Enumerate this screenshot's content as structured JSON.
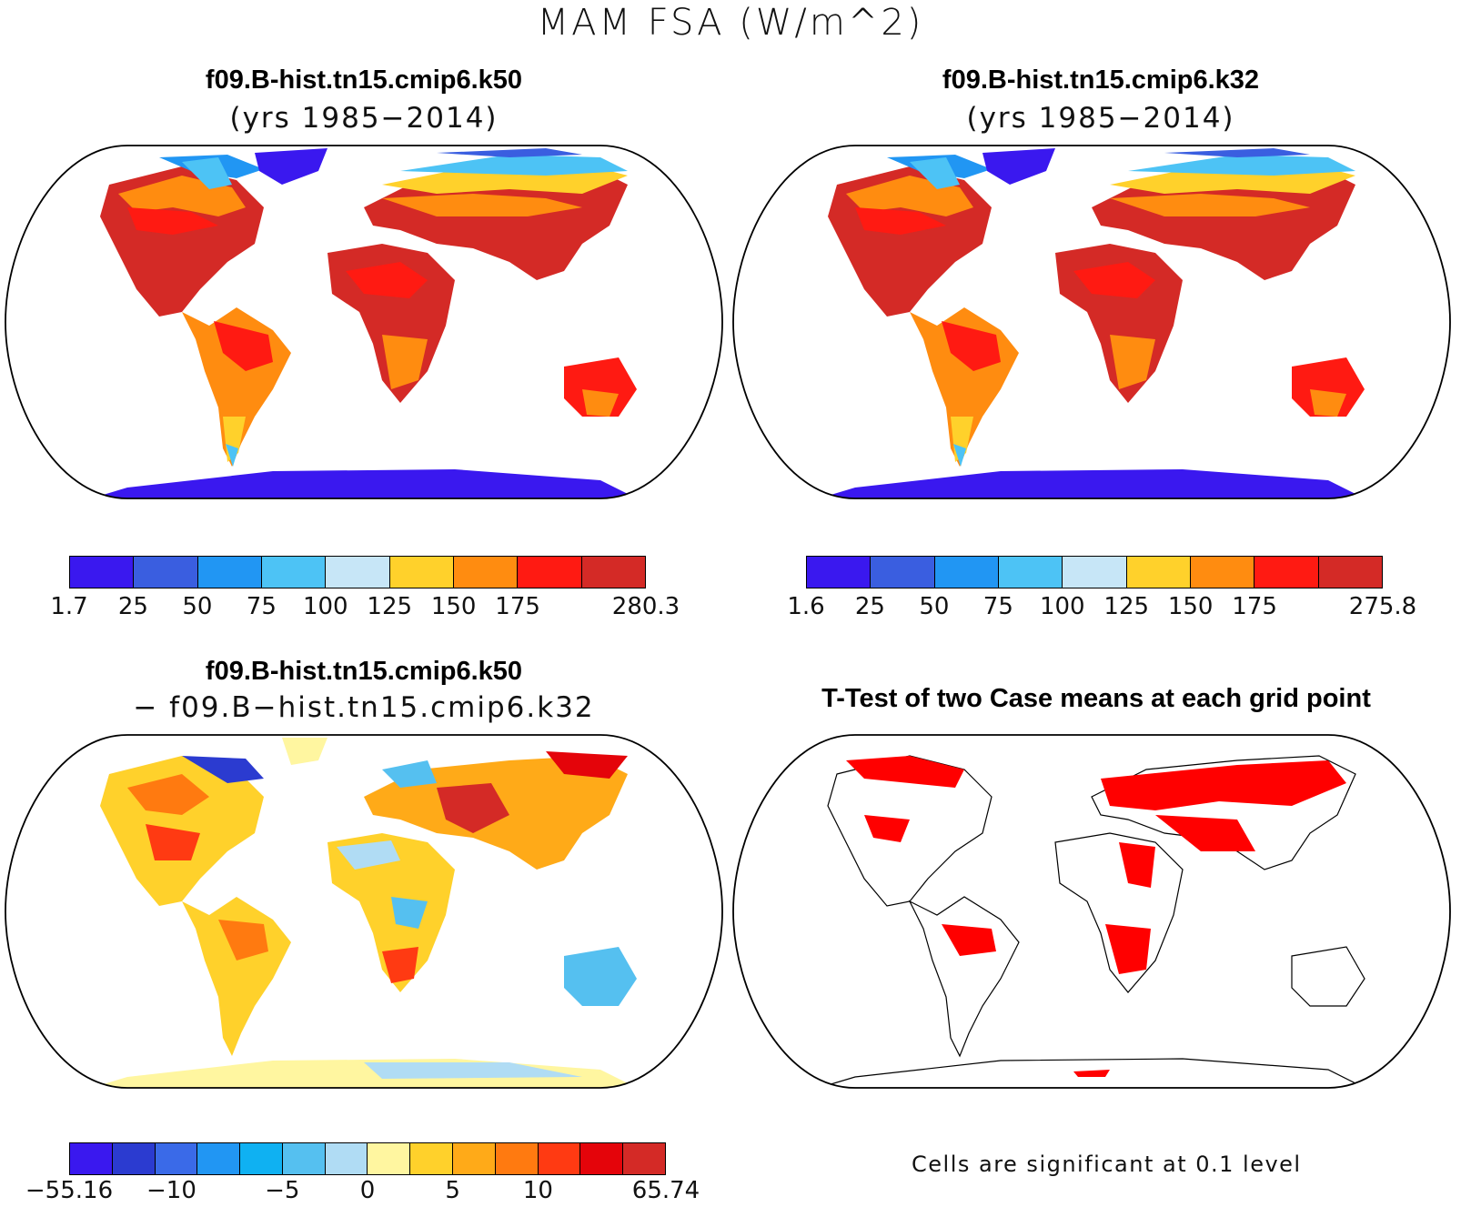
{
  "figure": {
    "title": "MAM FSA (W/m^2)"
  },
  "panels": {
    "top_left": {
      "title": "f09.B-hist.tn15.cmip6.k50",
      "subtitle": "(yrs 1985−2014)",
      "colorbar": {
        "colors": [
          "#3a18ef",
          "#3a5ee0",
          "#2196f3",
          "#4dc3f5",
          "#c7e6f7",
          "#ffd12b",
          "#ff8c10",
          "#ff1a12",
          "#d42a26"
        ],
        "tick_labels": [
          "1.7",
          "25",
          "50",
          "75",
          "100",
          "125",
          "150",
          "175",
          "280.3"
        ]
      }
    },
    "top_right": {
      "title": "f09.B-hist.tn15.cmip6.k32",
      "subtitle": "(yrs 1985−2014)",
      "colorbar": {
        "colors": [
          "#3a18ef",
          "#3a5ee0",
          "#2196f3",
          "#4dc3f5",
          "#c7e6f7",
          "#ffd12b",
          "#ff8c10",
          "#ff1a12",
          "#d42a26"
        ],
        "tick_labels": [
          "1.6",
          "25",
          "50",
          "75",
          "100",
          "125",
          "150",
          "175",
          "275.8"
        ]
      }
    },
    "bottom_left": {
      "title": "f09.B-hist.tn15.cmip6.k50",
      "subtitle": "− f09.B−hist.tn15.cmip6.k32",
      "colorbar": {
        "colors": [
          "#3a18ef",
          "#2b3bd0",
          "#3a6ae8",
          "#2196f3",
          "#0fb1f2",
          "#55c0f0",
          "#b0dcf4",
          "#fff6a0",
          "#ffd12b",
          "#ffaa18",
          "#ff7a10",
          "#ff3a12",
          "#e4040a",
          "#d42a26"
        ],
        "tick_labels": [
          "−55.16",
          "−10",
          "−5",
          "0",
          "5",
          "10",
          "65.74"
        ]
      }
    },
    "bottom_right": {
      "title": "T-Test of two Case means at each grid point",
      "note": "Cells are significant at 0.1 level",
      "significant_color": "#ff0000"
    }
  }
}
